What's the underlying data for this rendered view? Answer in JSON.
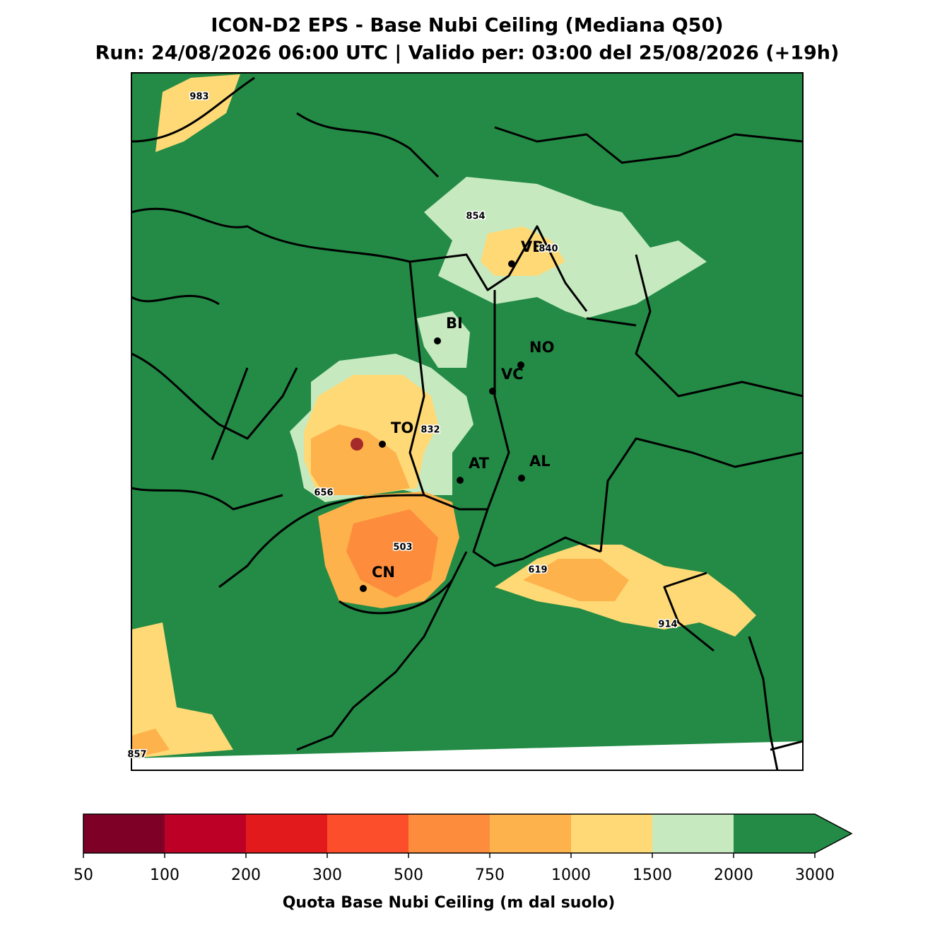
{
  "header": {
    "title": "ICON-D2 EPS - Base Nubi Ceiling (Mediana Q50)",
    "subtitle": "Run: 24/08/2026 06:00 UTC | Valido per: 03:00 del 25/08/2026 (+19h)"
  },
  "map": {
    "cities": [
      {
        "label": "VB"
      },
      {
        "label": "BI"
      },
      {
        "label": "NO"
      },
      {
        "label": "VC"
      },
      {
        "label": "TO"
      },
      {
        "label": "AT"
      },
      {
        "label": "AL"
      },
      {
        "label": "CN"
      }
    ],
    "value_labels": [
      983,
      854,
      840,
      832,
      656,
      503,
      619,
      914,
      857
    ]
  },
  "colorbar": {
    "levels": [
      50,
      100,
      200,
      300,
      500,
      750,
      1000,
      1500,
      2000,
      3000
    ],
    "colors": [
      "#7f0026",
      "#bd0026",
      "#e31a1c",
      "#fc4e2a",
      "#fd8d3c",
      "#feb24c",
      "#fed976",
      "#c7e9c0",
      "#238b45"
    ],
    "extend": "max",
    "label": "Quota Base Nubi Ceiling (m dal suolo)"
  }
}
